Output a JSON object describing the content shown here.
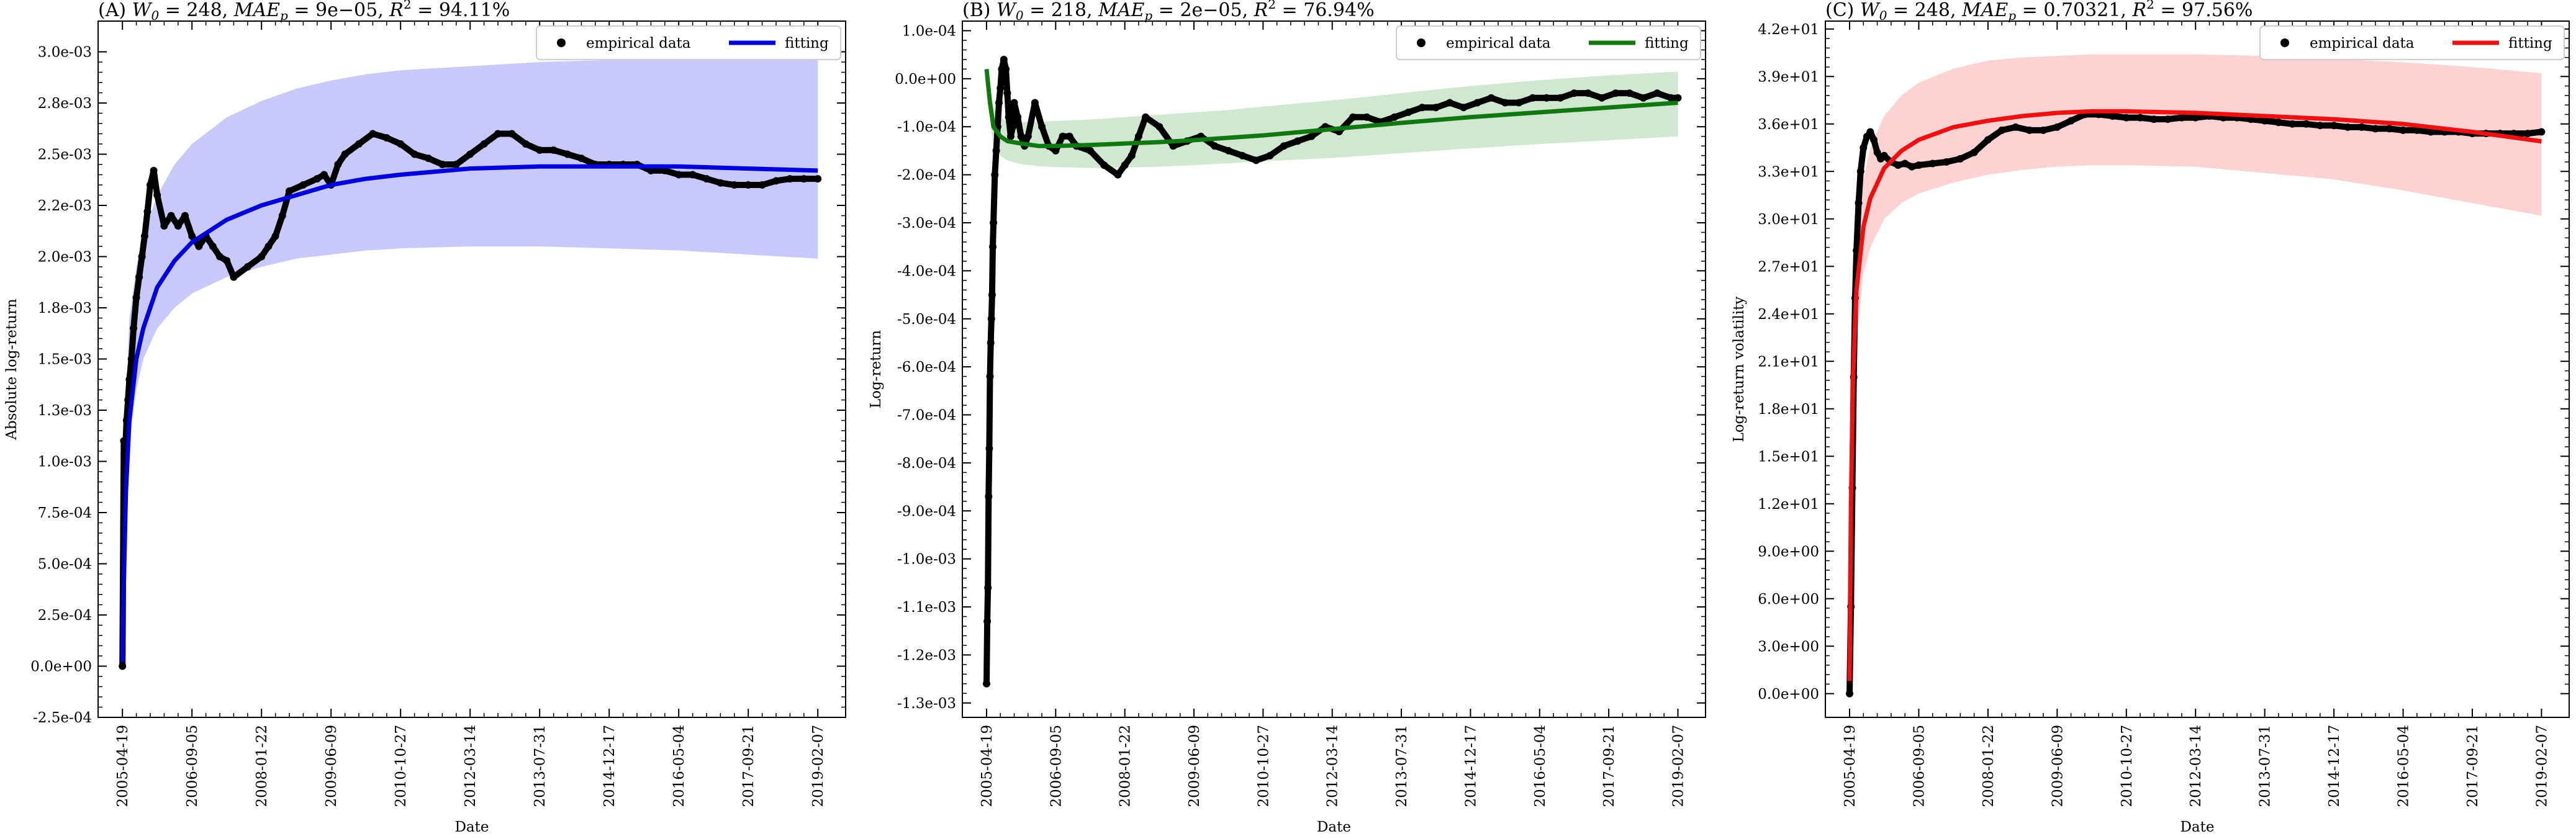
{
  "chart_data": [
    {
      "type": "line",
      "title": "(A) W_0 = 248, MAE_p = 9e−05, R^2 = 94.11%",
      "title_parts": {
        "panel": "(A)",
        "w0": "248",
        "mae": "9e−05",
        "r2": "94.11%"
      },
      "xlabel": "Date",
      "ylabel": "Absolute log-return",
      "x_ticks": [
        "2005-04-19",
        "2006-09-05",
        "2008-01-22",
        "2009-06-09",
        "2010-10-27",
        "2012-03-14",
        "2013-07-31",
        "2014-12-17",
        "2016-05-04",
        "2017-09-21",
        "2019-02-07"
      ],
      "y_ticks": [
        "-2.5e-04",
        "0.0e+00",
        "2.5e-04",
        "5.0e-04",
        "7.5e-04",
        "1.0e-03",
        "1.3e-03",
        "1.5e-03",
        "1.8e-03",
        "2.0e-03",
        "2.2e-03",
        "2.5e-03",
        "2.8e-03",
        "3.0e-03"
      ],
      "y_tick_values": [
        -0.00025,
        0,
        0.00025,
        0.0005,
        0.00075,
        0.001,
        0.00125,
        0.0015,
        0.00175,
        0.002,
        0.00225,
        0.0025,
        0.00275,
        0.003
      ],
      "xlim": [
        -0.35,
        10.4
      ],
      "ylim": [
        -0.00025,
        0.00315
      ],
      "fit_color": "#0000dd",
      "band_color": "#c8c8fa",
      "legend": {
        "placement": "top-right",
        "items": [
          "empirical data",
          "fitting"
        ]
      },
      "empirical": {
        "x": [
          0,
          0.02,
          0.04,
          0.06,
          0.08,
          0.1,
          0.13,
          0.16,
          0.2,
          0.24,
          0.28,
          0.32,
          0.36,
          0.4,
          0.45,
          0.5,
          0.6,
          0.7,
          0.8,
          0.9,
          1.0,
          1.1,
          1.2,
          1.3,
          1.4,
          1.5,
          1.6,
          1.8,
          2.0,
          2.1,
          2.2,
          2.3,
          2.4,
          2.6,
          2.8,
          2.9,
          3.0,
          3.1,
          3.2,
          3.4,
          3.6,
          3.8,
          4.0,
          4.2,
          4.4,
          4.6,
          4.8,
          5.0,
          5.2,
          5.4,
          5.6,
          5.8,
          6.0,
          6.2,
          6.4,
          6.6,
          6.8,
          7.0,
          7.2,
          7.4,
          7.6,
          7.8,
          8.0,
          8.2,
          8.4,
          8.6,
          8.8,
          9.0,
          9.2,
          9.4,
          9.6,
          9.8,
          10.0
        ],
        "y": [
          0.0,
          0.0011,
          0.00105,
          0.0012,
          0.0013,
          0.0014,
          0.0015,
          0.00165,
          0.0018,
          0.0019,
          0.002,
          0.0021,
          0.00222,
          0.00235,
          0.00242,
          0.0023,
          0.00215,
          0.0022,
          0.00215,
          0.0022,
          0.0021,
          0.00205,
          0.0021,
          0.00205,
          0.002,
          0.00198,
          0.0019,
          0.00195,
          0.002,
          0.00205,
          0.0021,
          0.0022,
          0.00232,
          0.00235,
          0.00238,
          0.0024,
          0.00235,
          0.00245,
          0.0025,
          0.00255,
          0.0026,
          0.00258,
          0.00255,
          0.0025,
          0.00248,
          0.00245,
          0.00245,
          0.0025,
          0.00255,
          0.0026,
          0.0026,
          0.00255,
          0.00252,
          0.00252,
          0.0025,
          0.00248,
          0.00245,
          0.00245,
          0.00245,
          0.00245,
          0.00242,
          0.00242,
          0.0024,
          0.0024,
          0.00238,
          0.00236,
          0.00235,
          0.00235,
          0.00235,
          0.00237,
          0.00238,
          0.00238,
          0.00238
        ]
      },
      "fit": {
        "x": [
          0,
          0.02,
          0.05,
          0.1,
          0.2,
          0.3,
          0.5,
          0.75,
          1,
          1.5,
          2,
          2.5,
          3,
          3.5,
          4,
          5,
          6,
          7,
          8,
          9,
          10
        ],
        "y": [
          2e-05,
          0.0004,
          0.00085,
          0.0012,
          0.0015,
          0.00165,
          0.00185,
          0.00198,
          0.00207,
          0.00218,
          0.00225,
          0.0023,
          0.00235,
          0.00238,
          0.0024,
          0.00243,
          0.00244,
          0.00244,
          0.00244,
          0.00243,
          0.00242
        ],
        "band_upper": [
          2e-05,
          0.0008,
          0.0013,
          0.0017,
          0.00195,
          0.0021,
          0.0023,
          0.00245,
          0.00255,
          0.00268,
          0.00276,
          0.00282,
          0.00286,
          0.00289,
          0.00291,
          0.00293,
          0.00295,
          0.00296,
          0.00297,
          0.00297,
          0.00297
        ],
        "band_lower": [
          2e-05,
          0.0004,
          0.00085,
          0.0011,
          0.00135,
          0.0015,
          0.00165,
          0.00175,
          0.00182,
          0.0019,
          0.00195,
          0.00199,
          0.00201,
          0.00203,
          0.00204,
          0.00205,
          0.00205,
          0.00204,
          0.00203,
          0.00201,
          0.00199
        ]
      }
    },
    {
      "type": "line",
      "title": "(B) W_0 = 218, MAE_p = 2e−05, R^2 = 76.94%",
      "title_parts": {
        "panel": "(B)",
        "w0": "218",
        "mae": "2e−05",
        "r2": "76.94%"
      },
      "xlabel": "Date",
      "ylabel": "Log-return",
      "x_ticks": [
        "2005-04-19",
        "2006-09-05",
        "2008-01-22",
        "2009-06-09",
        "2010-10-27",
        "2012-03-14",
        "2013-07-31",
        "2014-12-17",
        "2016-05-04",
        "2017-09-21",
        "2019-02-07"
      ],
      "y_ticks": [
        "1.0e-04",
        "0.0e+00",
        "-1.0e-04",
        "-2.0e-04",
        "-3.0e-04",
        "-4.0e-04",
        "-5.0e-04",
        "-6.0e-04",
        "-7.0e-04",
        "-8.0e-04",
        "-9.0e-04",
        "-1.0e-03",
        "-1.1e-03",
        "-1.2e-03",
        "-1.3e-03"
      ],
      "y_tick_values": [
        0.0001,
        0,
        -0.0001,
        -0.0002,
        -0.0003,
        -0.0004,
        -0.0005,
        -0.0006,
        -0.0007,
        -0.0008,
        -0.0009,
        -0.001,
        -0.0011,
        -0.0012,
        -0.0013
      ],
      "xlim": [
        -0.35,
        10.4
      ],
      "ylim": [
        -0.00133,
        0.00012
      ],
      "fit_color": "#117711",
      "band_color": "#cfe8cf",
      "legend": {
        "placement": "top-right",
        "items": [
          "empirical data",
          "fitting"
        ]
      },
      "empirical": {
        "x": [
          0,
          0.01,
          0.02,
          0.03,
          0.04,
          0.05,
          0.06,
          0.07,
          0.08,
          0.09,
          0.1,
          0.12,
          0.14,
          0.16,
          0.18,
          0.2,
          0.22,
          0.25,
          0.28,
          0.3,
          0.32,
          0.35,
          0.38,
          0.4,
          0.45,
          0.5,
          0.55,
          0.6,
          0.7,
          0.8,
          0.9,
          1.0,
          1.1,
          1.2,
          1.3,
          1.5,
          1.7,
          1.9,
          2.0,
          2.1,
          2.2,
          2.3,
          2.5,
          2.7,
          2.9,
          3.1,
          3.3,
          3.5,
          3.7,
          3.9,
          4.1,
          4.3,
          4.5,
          4.7,
          4.9,
          5.1,
          5.3,
          5.5,
          5.7,
          5.9,
          6.1,
          6.3,
          6.5,
          6.7,
          6.9,
          7.1,
          7.3,
          7.5,
          7.7,
          7.9,
          8.1,
          8.3,
          8.5,
          8.7,
          8.9,
          9.1,
          9.3,
          9.5,
          9.7,
          9.9,
          10.0
        ],
        "y": [
          -0.00126,
          -0.00113,
          -0.00106,
          -0.00087,
          -0.00077,
          -0.00062,
          -0.00055,
          -0.0005,
          -0.00045,
          -0.00035,
          -0.0003,
          -0.0002,
          -0.00015,
          -0.0001,
          -5e-05,
          -2e-05,
          2e-05,
          4e-05,
          2e-05,
          -3e-05,
          -8e-05,
          -0.00012,
          -0.0001,
          -5e-05,
          -8e-05,
          -0.00012,
          -0.00014,
          -0.00012,
          -5e-05,
          -0.0001,
          -0.00014,
          -0.00015,
          -0.00012,
          -0.00012,
          -0.00014,
          -0.00015,
          -0.00018,
          -0.0002,
          -0.00018,
          -0.00016,
          -0.00012,
          -8e-05,
          -0.0001,
          -0.00014,
          -0.00013,
          -0.00012,
          -0.00014,
          -0.00015,
          -0.00016,
          -0.00017,
          -0.00016,
          -0.00014,
          -0.00013,
          -0.00012,
          -0.0001,
          -0.00011,
          -8e-05,
          -8e-05,
          -9e-05,
          -8e-05,
          -7e-05,
          -6e-05,
          -6e-05,
          -5e-05,
          -6e-05,
          -5e-05,
          -4e-05,
          -5e-05,
          -5e-05,
          -4e-05,
          -4e-05,
          -4e-05,
          -3e-05,
          -3e-05,
          -4e-05,
          -3e-05,
          -3e-05,
          -4e-05,
          -3e-05,
          -4e-05,
          -4e-05
        ]
      },
      "fit": {
        "x": [
          0,
          0.05,
          0.1,
          0.2,
          0.3,
          0.5,
          0.75,
          1,
          1.5,
          2,
          2.5,
          3,
          3.5,
          4,
          5,
          6,
          7,
          8,
          9,
          10
        ],
        "y": [
          2e-05,
          -5e-05,
          -0.0001,
          -0.00012,
          -0.00013,
          -0.000135,
          -0.00014,
          -0.00014,
          -0.000138,
          -0.000135,
          -0.000132,
          -0.000128,
          -0.000123,
          -0.000118,
          -0.000105,
          -9.2e-05,
          -8e-05,
          -7e-05,
          -6e-05,
          -5e-05
        ],
        "band_upper": [
          2e-05,
          -2e-05,
          -6e-05,
          -8e-05,
          -9e-05,
          -9e-05,
          -9e-05,
          -8.8e-05,
          -8.5e-05,
          -8e-05,
          -7.5e-05,
          -7e-05,
          -6.5e-05,
          -5.8e-05,
          -4.5e-05,
          -3e-05,
          -1.5e-05,
          -3e-06,
          7e-06,
          1.5e-05
        ],
        "band_lower": [
          2e-05,
          -8e-05,
          -0.00014,
          -0.00016,
          -0.00017,
          -0.000178,
          -0.000182,
          -0.000184,
          -0.000186,
          -0.000185,
          -0.000183,
          -0.00018,
          -0.000176,
          -0.000172,
          -0.000165,
          -0.000155,
          -0.000145,
          -0.000136,
          -0.000128,
          -0.00012
        ]
      }
    },
    {
      "type": "line",
      "title": "(C) W_0 = 248, MAE_p = 0.70321, R^2 = 97.56%",
      "title_parts": {
        "panel": "(C)",
        "w0": "248",
        "mae": "0.70321",
        "r2": "97.56%"
      },
      "xlabel": "Date",
      "ylabel": "Log-return volatility",
      "x_ticks": [
        "2005-04-19",
        "2006-09-05",
        "2008-01-22",
        "2009-06-09",
        "2010-10-27",
        "2012-03-14",
        "2013-07-31",
        "2014-12-17",
        "2016-05-04",
        "2017-09-21",
        "2019-02-07"
      ],
      "y_ticks": [
        "0.0e+00",
        "3.0e+00",
        "6.0e+00",
        "9.0e+00",
        "1.2e+01",
        "1.5e+01",
        "1.8e+01",
        "2.1e+01",
        "2.4e+01",
        "2.7e+01",
        "3.0e+01",
        "3.3e+01",
        "3.6e+01",
        "3.9e+01",
        "4.2e+01"
      ],
      "y_tick_values": [
        0,
        3,
        6,
        9,
        12,
        15,
        18,
        21,
        24,
        27,
        30,
        33,
        36,
        39,
        42
      ],
      "xlim": [
        -0.35,
        10.4
      ],
      "ylim": [
        -1.5,
        42.5
      ],
      "fit_color": "#ee1111",
      "band_color": "#fcd2d2",
      "legend": {
        "placement": "top-right",
        "items": [
          "empirical data",
          "fitting"
        ]
      },
      "empirical": {
        "x": [
          0,
          0.02,
          0.04,
          0.06,
          0.08,
          0.1,
          0.13,
          0.16,
          0.2,
          0.25,
          0.3,
          0.35,
          0.4,
          0.45,
          0.5,
          0.6,
          0.7,
          0.8,
          0.9,
          1.0,
          1.2,
          1.4,
          1.6,
          1.8,
          2.0,
          2.2,
          2.4,
          2.6,
          2.8,
          3.0,
          3.2,
          3.4,
          3.6,
          3.8,
          4.0,
          4.2,
          4.4,
          4.6,
          4.8,
          5.0,
          5.2,
          5.4,
          5.6,
          5.8,
          6.0,
          6.2,
          6.4,
          6.6,
          6.8,
          7.0,
          7.2,
          7.4,
          7.6,
          7.8,
          8.0,
          8.2,
          8.4,
          8.6,
          8.8,
          9.0,
          9.2,
          9.4,
          9.6,
          9.8,
          10.0
        ],
        "y": [
          0.0,
          5.5,
          13.0,
          20.0,
          25.0,
          28.0,
          31.0,
          33.0,
          34.5,
          35.2,
          35.5,
          35.0,
          34.2,
          33.8,
          34.0,
          33.6,
          33.4,
          33.5,
          33.3,
          33.4,
          33.5,
          33.6,
          33.8,
          34.2,
          35.0,
          35.6,
          35.8,
          35.6,
          35.6,
          35.8,
          36.2,
          36.6,
          36.6,
          36.5,
          36.4,
          36.4,
          36.3,
          36.3,
          36.4,
          36.4,
          36.5,
          36.4,
          36.4,
          36.3,
          36.2,
          36.1,
          36.0,
          36.0,
          35.9,
          35.9,
          35.8,
          35.8,
          35.7,
          35.7,
          35.6,
          35.6,
          35.5,
          35.5,
          35.5,
          35.4,
          35.4,
          35.4,
          35.4,
          35.4,
          35.5
        ]
      },
      "fit": {
        "x": [
          0,
          0.02,
          0.05,
          0.1,
          0.2,
          0.3,
          0.5,
          0.75,
          1,
          1.5,
          2,
          2.5,
          3,
          3.5,
          4,
          5,
          6,
          7,
          8,
          9,
          10
        ],
        "y": [
          0.8,
          12,
          20,
          25.5,
          29.5,
          31.3,
          33.2,
          34.3,
          35.0,
          35.8,
          36.2,
          36.5,
          36.7,
          36.8,
          36.8,
          36.7,
          36.5,
          36.3,
          36.0,
          35.5,
          34.9
        ],
        "band_upper": [
          0.8,
          15,
          23,
          28.5,
          32.5,
          34.5,
          36.5,
          37.8,
          38.6,
          39.5,
          40.0,
          40.2,
          40.3,
          40.4,
          40.4,
          40.4,
          40.3,
          40.1,
          39.9,
          39.6,
          39.2
        ],
        "band_lower": [
          0.8,
          10,
          17.5,
          22.5,
          26.5,
          28.2,
          30.0,
          31.0,
          31.6,
          32.3,
          32.8,
          33.1,
          33.3,
          33.4,
          33.4,
          33.3,
          32.9,
          32.5,
          31.8,
          31.0,
          30.2
        ]
      }
    }
  ]
}
